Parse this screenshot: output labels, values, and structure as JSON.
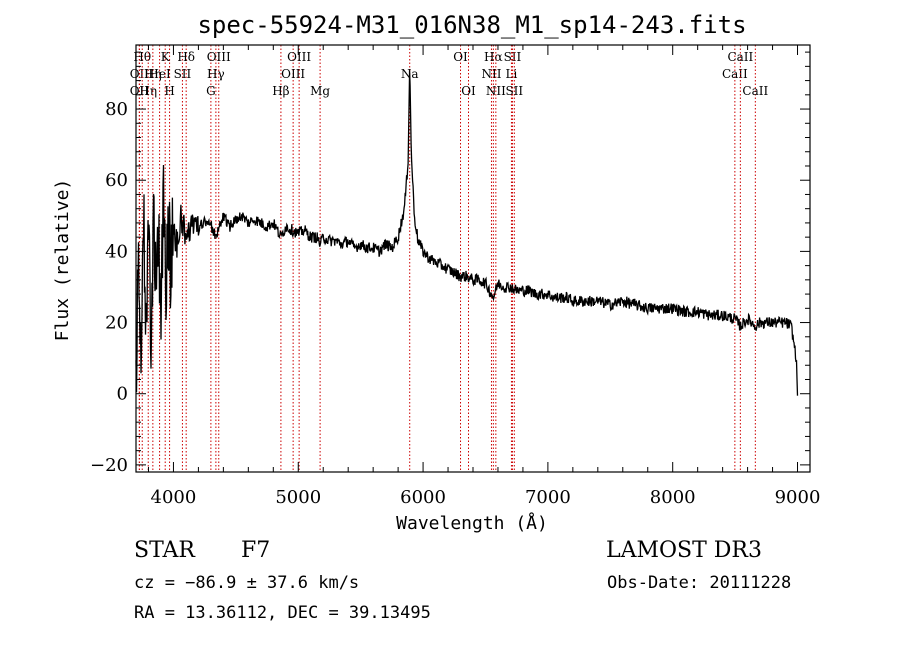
{
  "chart_data": {
    "type": "line",
    "title": "spec-55924-M31_016N38_M1_sp14-243.fits",
    "xlabel": "Wavelength (Å)",
    "ylabel": "Flux (relative)",
    "xlim": [
      3700,
      9100
    ],
    "ylim": [
      -22,
      98
    ],
    "xticks": [
      4000,
      5000,
      6000,
      7000,
      8000,
      9000
    ],
    "yticks": [
      -20,
      0,
      20,
      40,
      60,
      80
    ],
    "x_tick_labels": [
      "4000",
      "5000",
      "6000",
      "7000",
      "8000",
      "9000"
    ],
    "y_tick_labels": [
      "−20",
      "0",
      "20",
      "40",
      "60",
      "80"
    ],
    "series": [
      {
        "name": "spectrum",
        "points": [
          [
            3700,
            4
          ],
          [
            3720,
            40
          ],
          [
            3740,
            10
          ],
          [
            3760,
            55
          ],
          [
            3780,
            20
          ],
          [
            3800,
            48
          ],
          [
            3820,
            15
          ],
          [
            3840,
            50
          ],
          [
            3860,
            30
          ],
          [
            3880,
            45
          ],
          [
            3900,
            25
          ],
          [
            3920,
            52
          ],
          [
            3940,
            28
          ],
          [
            3960,
            47
          ],
          [
            3980,
            35
          ],
          [
            4000,
            46
          ],
          [
            4030,
            42
          ],
          [
            4060,
            50
          ],
          [
            4100,
            45
          ],
          [
            4150,
            48
          ],
          [
            4200,
            46
          ],
          [
            4250,
            49
          ],
          [
            4300,
            47
          ],
          [
            4340,
            44
          ],
          [
            4400,
            50
          ],
          [
            4450,
            47
          ],
          [
            4500,
            49
          ],
          [
            4550,
            50
          ],
          [
            4600,
            48
          ],
          [
            4650,
            49
          ],
          [
            4700,
            48
          ],
          [
            4750,
            47
          ],
          [
            4800,
            48
          ],
          [
            4861,
            44
          ],
          [
            4900,
            47
          ],
          [
            4950,
            46
          ],
          [
            5000,
            45
          ],
          [
            5050,
            46
          ],
          [
            5100,
            44
          ],
          [
            5150,
            44
          ],
          [
            5175,
            42
          ],
          [
            5200,
            44
          ],
          [
            5250,
            43
          ],
          [
            5300,
            43
          ],
          [
            5350,
            42
          ],
          [
            5400,
            43
          ],
          [
            5450,
            41
          ],
          [
            5500,
            42
          ],
          [
            5550,
            41
          ],
          [
            5600,
            41
          ],
          [
            5650,
            40
          ],
          [
            5700,
            42
          ],
          [
            5750,
            41
          ],
          [
            5800,
            44
          ],
          [
            5850,
            52
          ],
          [
            5880,
            65
          ],
          [
            5893,
            93
          ],
          [
            5905,
            68
          ],
          [
            5930,
            50
          ],
          [
            5960,
            43
          ],
          [
            6000,
            40
          ],
          [
            6050,
            38
          ],
          [
            6100,
            37
          ],
          [
            6150,
            36
          ],
          [
            6200,
            35
          ],
          [
            6250,
            34
          ],
          [
            6300,
            33
          ],
          [
            6350,
            33
          ],
          [
            6400,
            32
          ],
          [
            6450,
            32
          ],
          [
            6500,
            31
          ],
          [
            6563,
            27
          ],
          [
            6600,
            31
          ],
          [
            6650,
            30
          ],
          [
            6700,
            30
          ],
          [
            6750,
            29
          ],
          [
            6800,
            29
          ],
          [
            6850,
            29
          ],
          [
            6900,
            28
          ],
          [
            6950,
            28
          ],
          [
            7000,
            28
          ],
          [
            7050,
            27
          ],
          [
            7100,
            27
          ],
          [
            7150,
            27
          ],
          [
            7200,
            26
          ],
          [
            7300,
            26
          ],
          [
            7400,
            26
          ],
          [
            7500,
            25
          ],
          [
            7600,
            26
          ],
          [
            7700,
            25
          ],
          [
            7800,
            24
          ],
          [
            7900,
            24
          ],
          [
            8000,
            24
          ],
          [
            8100,
            23
          ],
          [
            8200,
            23
          ],
          [
            8300,
            22
          ],
          [
            8400,
            22
          ],
          [
            8500,
            21
          ],
          [
            8542,
            19
          ],
          [
            8600,
            21
          ],
          [
            8662,
            19
          ],
          [
            8700,
            20
          ],
          [
            8800,
            20
          ],
          [
            8900,
            20
          ],
          [
            8950,
            19
          ],
          [
            8990,
            10
          ],
          [
            9000,
            0
          ]
        ]
      }
    ],
    "line_markers": [
      {
        "wavelength": 3727,
        "label": "OII",
        "row": 2
      },
      {
        "wavelength": 3727,
        "label": "OII",
        "row": 3
      },
      {
        "wavelength": 3750,
        "label": "Hθ",
        "row": 1
      },
      {
        "wavelength": 3798,
        "label": "Hη",
        "row": 3
      },
      {
        "wavelength": 3835,
        "label": "Hη",
        "row": 2
      },
      {
        "wavelength": 3889,
        "label": "HeI",
        "row": 2
      },
      {
        "wavelength": 3934,
        "label": "K",
        "row": 1
      },
      {
        "wavelength": 3969,
        "label": "H",
        "row": 3
      },
      {
        "wavelength": 4072,
        "label": "SII",
        "row": 2
      },
      {
        "wavelength": 4102,
        "label": "Hδ",
        "row": 1
      },
      {
        "wavelength": 4300,
        "label": "G",
        "row": 3
      },
      {
        "wavelength": 4340,
        "label": "Hγ",
        "row": 2
      },
      {
        "wavelength": 4363,
        "label": "OIII",
        "row": 1
      },
      {
        "wavelength": 4861,
        "label": "Hβ",
        "row": 3
      },
      {
        "wavelength": 4959,
        "label": "OIII",
        "row": 2
      },
      {
        "wavelength": 5007,
        "label": "OIII",
        "row": 1
      },
      {
        "wavelength": 5175,
        "label": "Mg",
        "row": 3
      },
      {
        "wavelength": 5893,
        "label": "Na",
        "row": 2
      },
      {
        "wavelength": 6300,
        "label": "OI",
        "row": 1
      },
      {
        "wavelength": 6364,
        "label": "OI",
        "row": 3
      },
      {
        "wavelength": 6548,
        "label": "NII",
        "row": 2
      },
      {
        "wavelength": 6563,
        "label": "Hα",
        "row": 1
      },
      {
        "wavelength": 6583,
        "label": "NII",
        "row": 3
      },
      {
        "wavelength": 6708,
        "label": "Li",
        "row": 2
      },
      {
        "wavelength": 6716,
        "label": "SII",
        "row": 1
      },
      {
        "wavelength": 6731,
        "label": "SII",
        "row": 3
      },
      {
        "wavelength": 8498,
        "label": "CaII",
        "row": 2
      },
      {
        "wavelength": 8542,
        "label": "CaII",
        "row": 1
      },
      {
        "wavelength": 8662,
        "label": "CaII",
        "row": 3
      }
    ]
  },
  "info": {
    "class": "STAR",
    "subclass": "F7",
    "survey": "LAMOST DR3",
    "cz": "cz = −86.9 ± 37.6 km/s",
    "obs_date": "Obs-Date: 20111228",
    "radec": "RA =  13.36112, DEC =  39.13495"
  },
  "colors": {
    "spectrum": "#000000",
    "marker": "#cc0000",
    "frame": "#000000"
  }
}
